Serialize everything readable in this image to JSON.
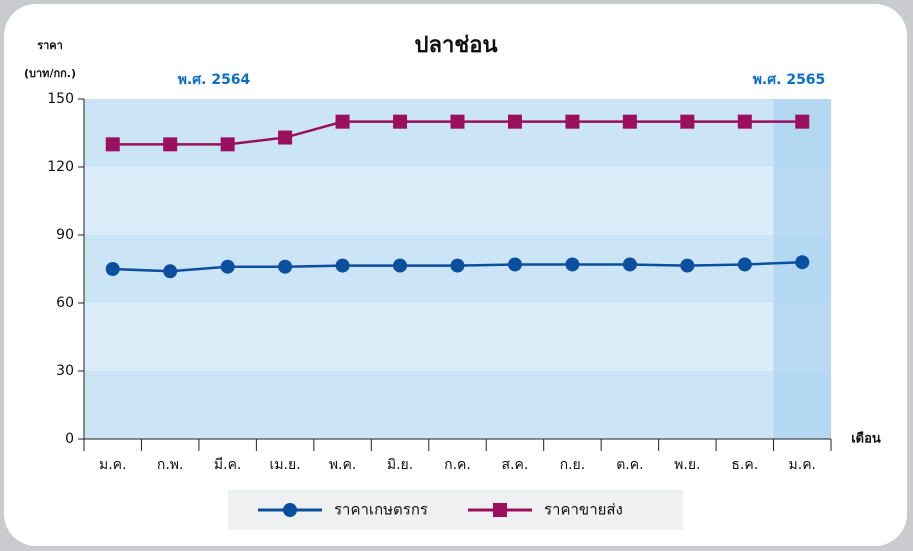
{
  "chart_data": {
    "type": "line",
    "title": "ปลาช่อน",
    "ylabel": [
      "ราคา",
      "(บาท/กก.)"
    ],
    "xlabel": "เดือน",
    "annotations": [
      "พ.ศ. 2564",
      "พ.ศ. 2565"
    ],
    "categories": [
      "ม.ค.",
      "ก.พ.",
      "มี.ค.",
      "เม.ย.",
      "พ.ค.",
      "มิ.ย.",
      "ก.ค.",
      "ส.ค.",
      "ก.ย.",
      "ต.ค.",
      "พ.ย.",
      "ธ.ค.",
      "ม.ค."
    ],
    "series": [
      {
        "name": "ราคาเกษตรกร",
        "color": "#0b4f9e",
        "marker": "circle",
        "values": [
          75,
          74,
          76,
          76,
          76.5,
          76.5,
          76.5,
          77,
          77,
          77,
          76.5,
          77,
          78
        ]
      },
      {
        "name": "ราคาขายส่ง",
        "color": "#9b0f5f",
        "marker": "square",
        "values": [
          130,
          130,
          130,
          133,
          140,
          140,
          140,
          140,
          140,
          140,
          140,
          140,
          140
        ]
      }
    ],
    "ylim": [
      0,
      150
    ],
    "yticks": [
      0,
      30,
      60,
      90,
      120,
      150
    ],
    "grid": true,
    "highlight": 12,
    "legend": "bottom"
  }
}
